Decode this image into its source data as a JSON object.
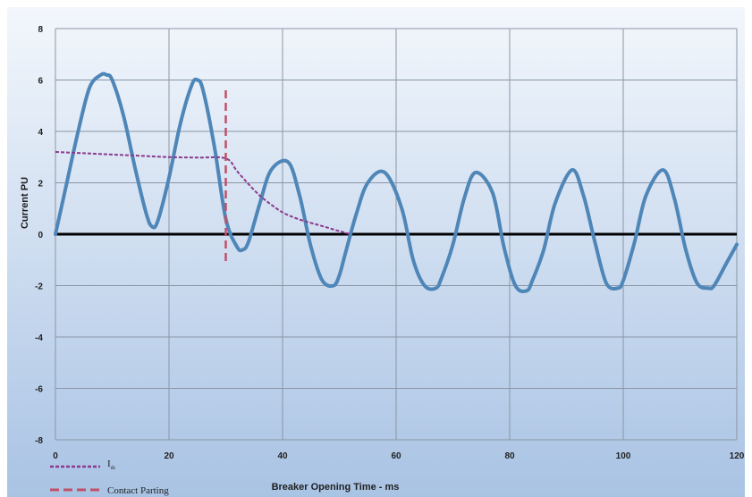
{
  "chart_data": {
    "type": "line",
    "xlabel": "Breaker Opening Time - ms",
    "ylabel": "Current PU",
    "xlim": [
      0,
      120
    ],
    "ylim": [
      -8,
      8
    ],
    "x_ticks": [
      "0",
      "20",
      "40",
      "60",
      "80",
      "100",
      "120"
    ],
    "y_ticks": [
      "8",
      "6",
      "4",
      "2",
      "0",
      "-2",
      "-4",
      "-6",
      "-8"
    ],
    "grid": true,
    "legend_position": "bottom-left",
    "colors": {
      "current": "#4f86b8",
      "idc": "#8b3a8e",
      "contact": "#c0506a",
      "zero_line": "#000000",
      "plot_bg_top": "#f3f7fc",
      "plot_bg_bottom": "#a9c3e4",
      "grid": "#8a96a6"
    },
    "series": [
      {
        "key": "current",
        "x": [
          0,
          2,
          4,
          6,
          8,
          9,
          10,
          12,
          14,
          16,
          17,
          18,
          20,
          22,
          24,
          25,
          26,
          28,
          30,
          32,
          33,
          34,
          36,
          38,
          41,
          43,
          45,
          47,
          49,
          50,
          51,
          53,
          55,
          58,
          61,
          63,
          65,
          67,
          68,
          70,
          72,
          74,
          77,
          79,
          81,
          83,
          84,
          86,
          88,
          91,
          93,
          95,
          97,
          99,
          100,
          102,
          104,
          107,
          109,
          111,
          113,
          115,
          116,
          118,
          120
        ],
        "y": [
          0.0,
          2.0,
          4.0,
          5.7,
          6.2,
          6.2,
          6.0,
          4.6,
          2.6,
          0.8,
          0.3,
          0.5,
          2.2,
          4.3,
          5.8,
          6.0,
          5.6,
          3.4,
          0.6,
          -0.5,
          -0.6,
          -0.3,
          1.2,
          2.5,
          2.8,
          1.5,
          -0.5,
          -1.8,
          -2.0,
          -1.6,
          -0.8,
          0.8,
          2.0,
          2.4,
          1.0,
          -1.0,
          -2.0,
          -2.1,
          -1.7,
          -0.4,
          1.4,
          2.4,
          1.6,
          -0.5,
          -2.0,
          -2.2,
          -1.8,
          -0.6,
          1.2,
          2.5,
          1.5,
          -0.3,
          -1.9,
          -2.1,
          -1.8,
          -0.3,
          1.5,
          2.5,
          1.4,
          -0.6,
          -1.9,
          -2.1,
          -2.0,
          -1.2,
          -0.4
        ]
      },
      {
        "key": "idc",
        "name": "I",
        "subscript": "dc",
        "x": [
          0,
          5,
          10,
          15,
          20,
          25,
          30,
          32,
          34,
          36,
          38,
          40,
          42,
          44,
          46,
          48,
          50,
          52
        ],
        "y": [
          3.2,
          3.15,
          3.1,
          3.05,
          3.0,
          2.98,
          2.95,
          2.45,
          1.95,
          1.5,
          1.15,
          0.85,
          0.65,
          0.5,
          0.38,
          0.25,
          0.12,
          0.0
        ]
      },
      {
        "key": "contact",
        "name": "Contact Parting",
        "x": [
          30,
          30
        ],
        "y": [
          5.6,
          -1.2
        ]
      }
    ]
  }
}
